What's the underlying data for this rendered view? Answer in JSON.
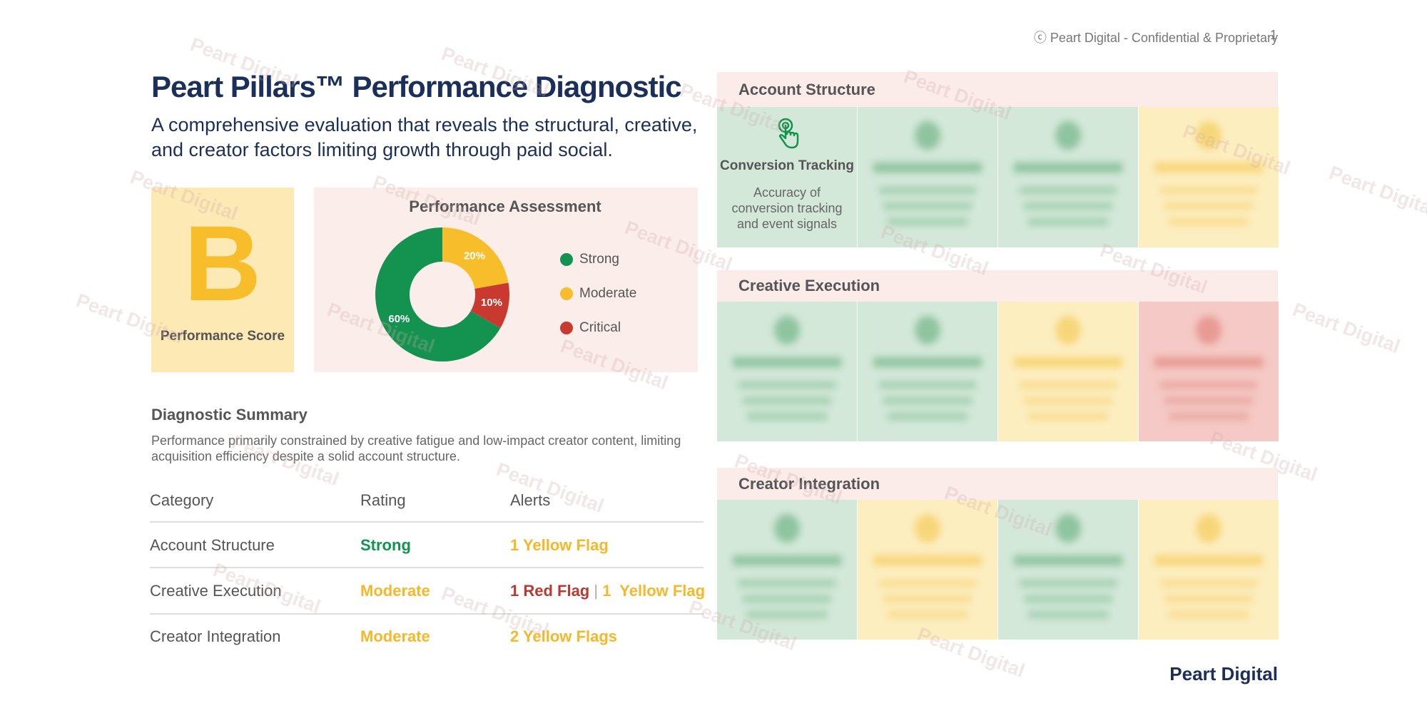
{
  "header": {
    "note": "ⓒ Peart Digital - Confidential & Proprietary",
    "page": "1",
    "title": "Peart Pillars™ Performance Diagnostic",
    "subtitle": [
      "A comprehensive evaluation that reveals the structural, creative,",
      "and creator factors limiting growth through paid social."
    ]
  },
  "score": {
    "grade": "B",
    "label": "Performance Score"
  },
  "chart_data": {
    "type": "pie",
    "title": "Performance Assessment",
    "categories": [
      "Strong",
      "Moderate",
      "Critical"
    ],
    "values": [
      60,
      20,
      10
    ],
    "value_labels": [
      "60%",
      "20%",
      "10%"
    ],
    "colors": [
      "#14924f",
      "#f8bd2b",
      "#c9392f"
    ],
    "donut": true,
    "legend": "right"
  },
  "summary": {
    "title": "Diagnostic Summary",
    "text": [
      "Performance primarily constrained by creative fatigue and low-impact creator content, limiting",
      "acquisition efficiency despite a solid account structure."
    ]
  },
  "table": {
    "columns": [
      "Category",
      "Rating",
      "Alerts"
    ],
    "rows": [
      [
        "Account Structure",
        "Strong",
        [
          "1 Yellow Flag"
        ]
      ],
      [
        "Creative Execution",
        "Moderate",
        [
          "1 Red Flag",
          "|",
          "1  Yellow Flag"
        ]
      ],
      [
        "Creator Integration",
        "Moderate",
        [
          "2 Yellow Flags"
        ]
      ]
    ]
  },
  "pillars": [
    {
      "title": "Account Structure",
      "card": {
        "title": "Conversion Tracking",
        "text": [
          "Accuracy of",
          "conversion tracking",
          "and event signals"
        ]
      }
    },
    {
      "title": "Creative Execution"
    },
    {
      "title": "Creator Integration"
    }
  ],
  "footer": {
    "brand": "Peart Digital"
  },
  "watermark": "Peart Digital"
}
